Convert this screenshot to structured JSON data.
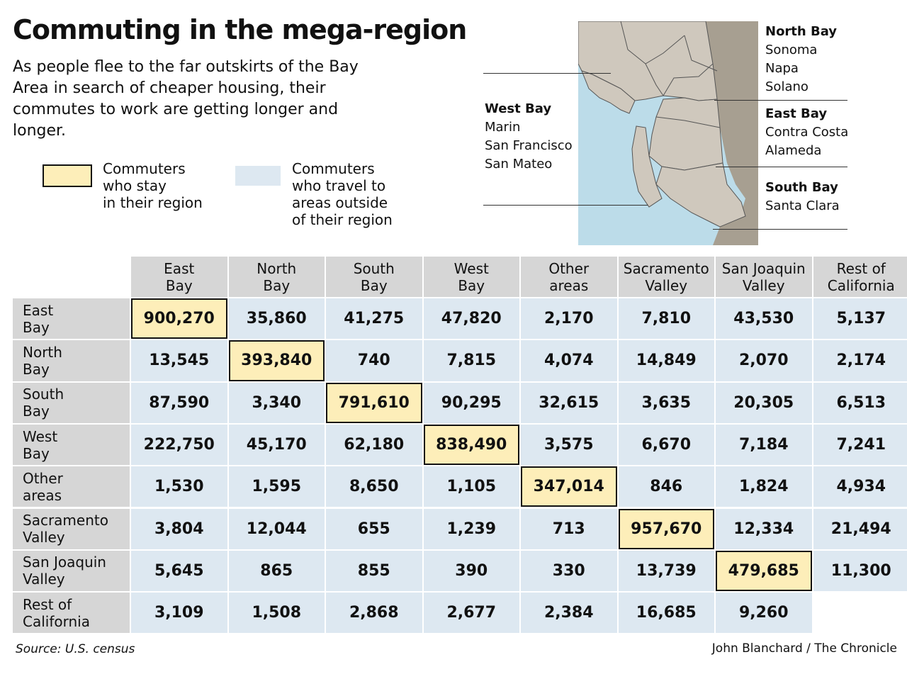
{
  "title": "Commuting in the mega-region",
  "subtitle": "As people flee to the far outskirts of the Bay Area in search of cheaper housing, their commutes to work are getting longer and longer.",
  "legend": {
    "stay": "Commuters\nwho stay\nin their region",
    "travel": "Commuters\nwho travel to\nareas outside\nof their region",
    "stay_color": "#fdeeb9",
    "travel_color": "#dde8f1"
  },
  "map": {
    "north_bay": {
      "name": "North Bay",
      "counties": [
        "Sonoma",
        "Napa",
        "Solano"
      ]
    },
    "east_bay": {
      "name": "East Bay",
      "counties": [
        "Contra Costa",
        "Alameda"
      ]
    },
    "south_bay": {
      "name": "South Bay",
      "counties": [
        "Santa Clara"
      ]
    },
    "west_bay": {
      "name": "West Bay",
      "counties": [
        "Marin",
        "San Francisco",
        "San Mateo"
      ]
    },
    "water_color": "#bcdce9",
    "land_color": "#cfc8bd",
    "outer_color": "#a79f91"
  },
  "chart_data": {
    "type": "table",
    "columns": [
      "East\nBay",
      "North\nBay",
      "South\nBay",
      "West\nBay",
      "Other\nareas",
      "Sacramento\nValley",
      "San Joaquin\nValley",
      "Rest of\nCalifornia"
    ],
    "rows": [
      "East\nBay",
      "North\nBay",
      "South\nBay",
      "West\nBay",
      "Other\nareas",
      "Sacramento\nValley",
      "San Joaquin\nValley",
      "Rest of\nCalifornia"
    ],
    "values": [
      [
        "900,270",
        "35,860",
        "41,275",
        "47,820",
        "2,170",
        "7,810",
        "43,530",
        "5,137"
      ],
      [
        "13,545",
        "393,840",
        "740",
        "7,815",
        "4,074",
        "14,849",
        "2,070",
        "2,174"
      ],
      [
        "87,590",
        "3,340",
        "791,610",
        "90,295",
        "32,615",
        "3,635",
        "20,305",
        "6,513"
      ],
      [
        "222,750",
        "45,170",
        "62,180",
        "838,490",
        "3,575",
        "6,670",
        "7,184",
        "7,241"
      ],
      [
        "1,530",
        "1,595",
        "8,650",
        "1,105",
        "347,014",
        "846",
        "1,824",
        "4,934"
      ],
      [
        "3,804",
        "12,044",
        "655",
        "1,239",
        "713",
        "957,670",
        "12,334",
        "21,494"
      ],
      [
        "5,645",
        "865",
        "855",
        "390",
        "330",
        "13,739",
        "479,685",
        "11,300"
      ],
      [
        "3,109",
        "1,508",
        "2,868",
        "2,677",
        "2,384",
        "16,685",
        "9,260",
        ""
      ]
    ]
  },
  "source": "Source: U.S. census",
  "credit": "John Blanchard / The Chronicle"
}
